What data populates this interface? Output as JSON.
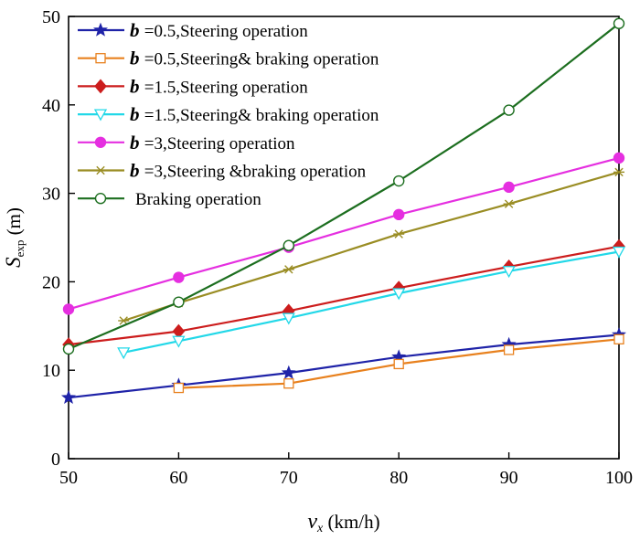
{
  "chart_data": {
    "type": "line",
    "xlabel": "v_x (km/h)",
    "xlabel_parts": {
      "symbol": "v",
      "subscript": "x",
      "unit": " (km/h)"
    },
    "ylabel": "S_exp (m)",
    "ylabel_parts": {
      "symbol": "S",
      "subscript": "exp",
      "unit": " (m)"
    },
    "xlim": [
      50,
      100
    ],
    "ylim": [
      0,
      50
    ],
    "xticks": [
      50,
      60,
      70,
      80,
      90,
      100
    ],
    "yticks": [
      0,
      10,
      20,
      30,
      40,
      50
    ],
    "grid": false,
    "legend_position": "top-left",
    "series": [
      {
        "name": "b =0.5,Steering operation",
        "legend_b": "b",
        "legend_rest": "=0.5,Steering operation",
        "color": "#1f23a8",
        "marker": "star",
        "filled": true,
        "x": [
          50,
          60,
          70,
          80,
          90,
          100
        ],
        "y": [
          6.9,
          8.3,
          9.7,
          11.5,
          12.9,
          14.0
        ]
      },
      {
        "name": "b =0.5,Steering& braking operation",
        "legend_b": "b",
        "legend_rest": "=0.5,Steering& braking operation",
        "color": "#e8811e",
        "marker": "square",
        "filled": false,
        "x": [
          60,
          70,
          80,
          90,
          100
        ],
        "y": [
          8.0,
          8.5,
          10.7,
          12.3,
          13.5
        ]
      },
      {
        "name": "b =1.5,Steering operation",
        "legend_b": "b",
        "legend_rest": "=1.5,Steering operation",
        "color": "#cc1d1d",
        "marker": "diamond",
        "filled": true,
        "x": [
          50,
          60,
          70,
          80,
          90,
          100
        ],
        "y": [
          12.9,
          14.4,
          16.7,
          19.3,
          21.7,
          24.0
        ]
      },
      {
        "name": "b =1.5,Steering& braking operation",
        "legend_b": "b",
        "legend_rest": "=1.5,Steering& braking operation",
        "color": "#22d8e8",
        "marker": "triangle-down",
        "filled": false,
        "x": [
          55,
          60,
          70,
          80,
          90,
          100
        ],
        "y": [
          12.0,
          13.3,
          15.9,
          18.7,
          21.2,
          23.4
        ]
      },
      {
        "name": "b =3,Steering operation",
        "legend_b": "b",
        "legend_rest": "=3,Steering operation",
        "color": "#e52fe0",
        "marker": "circle",
        "filled": true,
        "x": [
          50,
          60,
          70,
          80,
          90,
          100
        ],
        "y": [
          16.9,
          20.5,
          23.9,
          27.6,
          30.7,
          34.0
        ]
      },
      {
        "name": "b =3,Steering &braking operation",
        "legend_b": "b",
        "legend_rest": "=3,Steering &braking operation",
        "color": "#9a8d24",
        "marker": "asterisk",
        "filled": false,
        "x": [
          55,
          60,
          70,
          80,
          90,
          100
        ],
        "y": [
          15.6,
          17.6,
          21.4,
          25.4,
          28.8,
          32.4
        ]
      },
      {
        "name": "Braking operation",
        "legend_b": "",
        "legend_rest": "Braking operation",
        "color": "#1c6e1f",
        "marker": "circle",
        "filled": false,
        "x": [
          50,
          60,
          70,
          80,
          90,
          100
        ],
        "y": [
          12.4,
          17.7,
          24.1,
          31.4,
          39.4,
          49.2
        ]
      }
    ]
  }
}
